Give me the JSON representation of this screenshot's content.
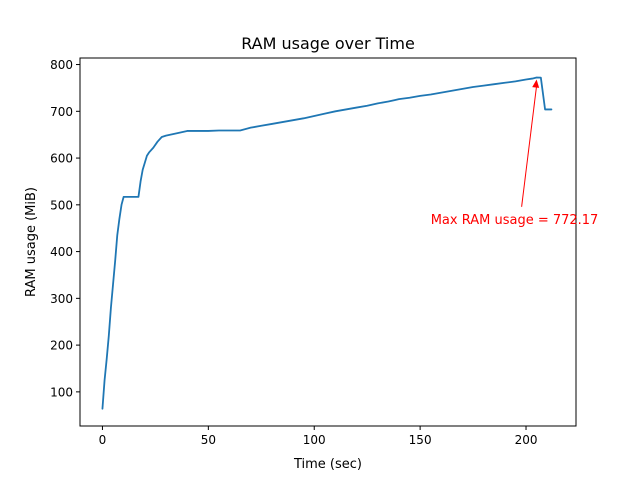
{
  "chart_data": {
    "type": "line",
    "title": "RAM usage over Time",
    "xlabel": "Time (sec)",
    "ylabel": "RAM usage (MiB)",
    "xlim": [
      -10.6,
      223.6
    ],
    "ylim": [
      27,
      814
    ],
    "xticks": [
      0,
      50,
      100,
      150,
      200
    ],
    "yticks": [
      100,
      200,
      300,
      400,
      500,
      600,
      700,
      800
    ],
    "grid": false,
    "legend": "none",
    "series": [
      {
        "color": "#1f77b4",
        "x": [
          0,
          1,
          2,
          3,
          4,
          5,
          6,
          7,
          8,
          9,
          10,
          11,
          13,
          15,
          17,
          18,
          19,
          20,
          21,
          22,
          24,
          26,
          28,
          30,
          33,
          36,
          40,
          42,
          45,
          50,
          55,
          60,
          65,
          70,
          75,
          80,
          85,
          90,
          95,
          100,
          105,
          110,
          115,
          120,
          125,
          130,
          135,
          138,
          140,
          145,
          150,
          155,
          160,
          165,
          170,
          175,
          180,
          185,
          190,
          195,
          200,
          203,
          205,
          207,
          209,
          212
        ],
        "y": [
          64,
          125,
          170,
          220,
          280,
          330,
          380,
          435,
          470,
          500,
          517,
          517,
          517,
          517,
          517,
          550,
          575,
          590,
          605,
          612,
          622,
          635,
          645,
          648,
          651,
          654,
          658,
          658,
          658,
          658,
          659,
          659,
          659,
          665,
          669,
          673,
          677,
          681,
          685,
          690,
          695,
          700,
          704,
          708,
          712,
          717,
          721,
          724,
          726,
          729,
          733,
          736,
          740,
          744,
          748,
          752,
          755,
          758,
          761,
          764,
          768,
          770,
          772.17,
          772,
          704,
          704
        ]
      }
    ],
    "annotations": [
      {
        "text": "Max RAM usage = 772.17",
        "color": "#ff0000",
        "point": [
          205,
          772.17
        ],
        "text_at": [
          155,
          470
        ]
      }
    ]
  }
}
